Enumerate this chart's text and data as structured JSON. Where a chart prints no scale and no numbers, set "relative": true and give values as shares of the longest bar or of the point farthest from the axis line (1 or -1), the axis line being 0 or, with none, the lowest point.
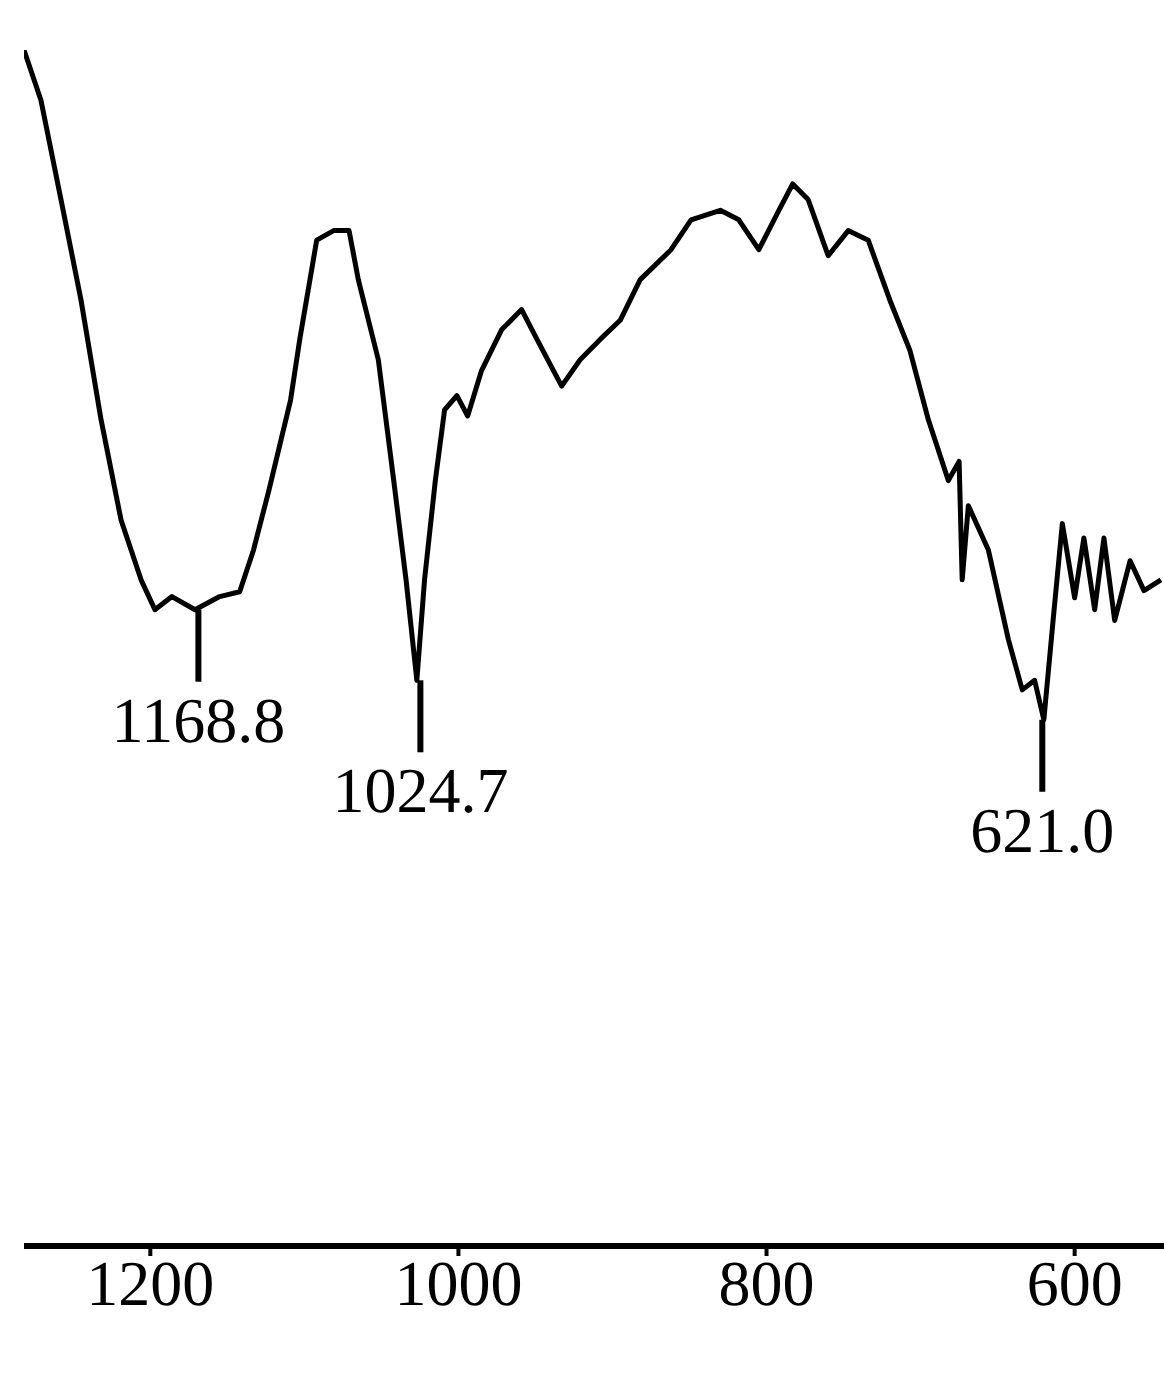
{
  "chart_data": {
    "type": "line",
    "relative": true,
    "xlim": [
      1282,
      542
    ],
    "xticks": [
      1200,
      1000,
      800,
      600
    ],
    "marker": "none",
    "line_style": "solid",
    "x": [
      1282,
      1271,
      1258,
      1245,
      1232,
      1219,
      1206,
      1197,
      1186,
      1171,
      1155,
      1142,
      1133,
      1123,
      1109,
      1103,
      1092,
      1081,
      1071,
      1065,
      1052,
      1042,
      1034,
      1027,
      1022,
      1015,
      1009,
      1001,
      994,
      985,
      972,
      959,
      949,
      933,
      921,
      908,
      895,
      882,
      862,
      849,
      830,
      818,
      805,
      792,
      783,
      773,
      760,
      747,
      734,
      720,
      707,
      695,
      682,
      675,
      673,
      669,
      656,
      643,
      634,
      626,
      620,
      614,
      608,
      600,
      594,
      587,
      581,
      574,
      564,
      555,
      544
    ],
    "series": [
      {
        "color": "#000000",
        "values": [
          1.0,
          0.958,
          0.875,
          0.791,
          0.691,
          0.607,
          0.557,
          0.532,
          0.543,
          0.532,
          0.543,
          0.547,
          0.582,
          0.632,
          0.707,
          0.758,
          0.841,
          0.849,
          0.849,
          0.808,
          0.741,
          0.64,
          0.557,
          0.473,
          0.557,
          0.64,
          0.699,
          0.711,
          0.694,
          0.732,
          0.766,
          0.783,
          0.758,
          0.719,
          0.741,
          0.758,
          0.774,
          0.808,
          0.833,
          0.858,
          0.866,
          0.858,
          0.833,
          0.866,
          0.888,
          0.875,
          0.828,
          0.849,
          0.841,
          0.791,
          0.749,
          0.691,
          0.64,
          0.656,
          0.557,
          0.619,
          0.582,
          0.507,
          0.465,
          0.473,
          0.44,
          0.523,
          0.604,
          0.542,
          0.592,
          0.532,
          0.592,
          0.523,
          0.573,
          0.548,
          0.557
        ]
      }
    ],
    "annotations": [
      {
        "text": "1168.8",
        "x": 1168.8,
        "y": 0.532
      },
      {
        "text": "1024.7",
        "x": 1024.7,
        "y": 0.473
      },
      {
        "text": "621.0",
        "x": 621.0,
        "y": 0.44
      }
    ]
  }
}
